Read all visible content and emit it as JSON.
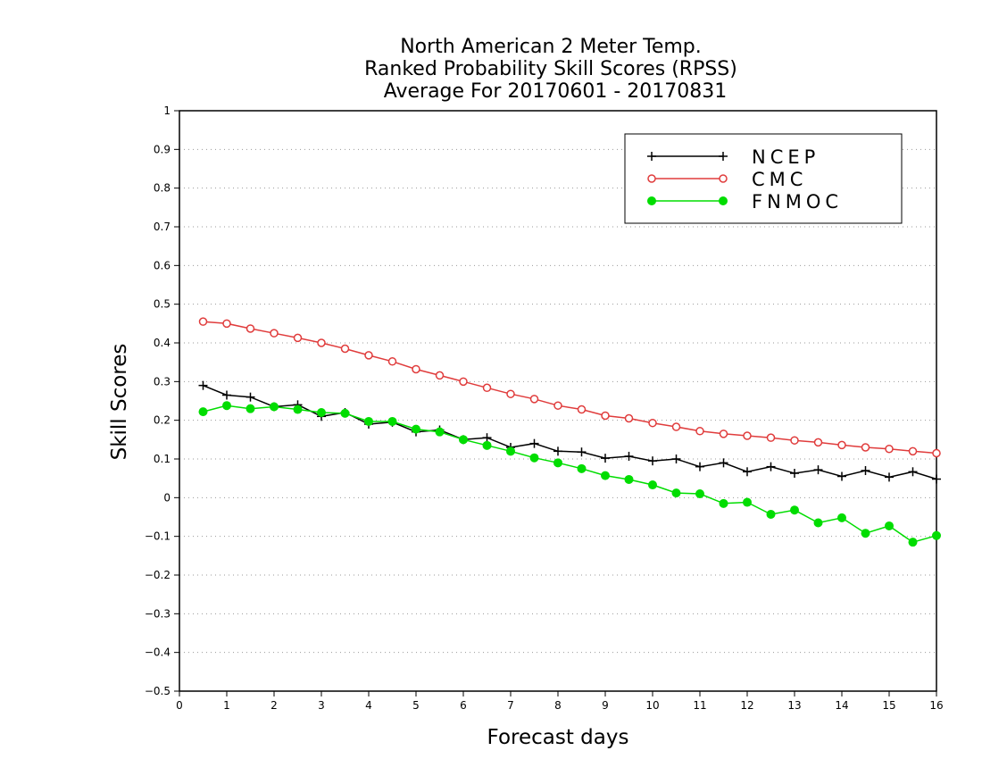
{
  "chart_data": {
    "type": "line",
    "title_lines": [
      "North American 2 Meter Temp.",
      "Ranked Probability Skill Scores (RPSS)",
      "Average For 20170601 - 20170831"
    ],
    "xlabel": "Forecast days",
    "ylabel": "Skill Scores",
    "xlim": [
      0,
      16
    ],
    "ylim": [
      -0.5,
      1
    ],
    "x_ticks": [
      "0",
      "1",
      "2",
      "3",
      "4",
      "5",
      "6",
      "7",
      "8",
      "9",
      "10",
      "11",
      "12",
      "13",
      "14",
      "15",
      "16"
    ],
    "y_ticks": [
      "−0.5",
      "−0.4",
      "−0.3",
      "−0.2",
      "−0.1",
      "0",
      "0.1",
      "0.2",
      "0.3",
      "0.4",
      "0.5",
      "0.6",
      "0.7",
      "0.8",
      "0.9",
      "1"
    ],
    "grid": "horizontal dotted",
    "legend_position": "top-right",
    "x": [
      0.5,
      1,
      1.5,
      2,
      2.5,
      3,
      3.5,
      4,
      4.5,
      5,
      5.5,
      6,
      6.5,
      7,
      7.5,
      8,
      8.5,
      9,
      9.5,
      10,
      10.5,
      11,
      11.5,
      12,
      12.5,
      13,
      13.5,
      14,
      14.5,
      15,
      15.5,
      16
    ],
    "series": [
      {
        "name": "NCEP",
        "color": "#000000",
        "marker": "plus",
        "values": [
          0.29,
          0.265,
          0.26,
          0.235,
          0.24,
          0.21,
          0.22,
          0.19,
          0.195,
          0.17,
          0.175,
          0.15,
          0.155,
          0.13,
          0.14,
          0.12,
          0.118,
          0.102,
          0.107,
          0.095,
          0.1,
          0.08,
          0.09,
          0.067,
          0.08,
          0.063,
          0.072,
          0.055,
          0.07,
          0.053,
          0.067,
          0.048
        ]
      },
      {
        "name": "CMC",
        "color": "#e03c3c",
        "marker": "open-circle",
        "values": [
          0.455,
          0.45,
          0.437,
          0.425,
          0.413,
          0.4,
          0.385,
          0.368,
          0.352,
          0.332,
          0.316,
          0.3,
          0.284,
          0.268,
          0.255,
          0.238,
          0.228,
          0.212,
          0.205,
          0.193,
          0.183,
          0.172,
          0.165,
          0.16,
          0.155,
          0.148,
          0.143,
          0.136,
          0.13,
          0.126,
          0.12,
          0.115
        ]
      },
      {
        "name": "FNMOC",
        "color": "#00dd00",
        "marker": "filled-circle",
        "values": [
          0.222,
          0.238,
          0.23,
          0.235,
          0.228,
          0.22,
          0.218,
          0.197,
          0.197,
          0.177,
          0.17,
          0.15,
          0.135,
          0.12,
          0.103,
          0.09,
          0.075,
          0.057,
          0.047,
          0.033,
          0.012,
          0.01,
          -0.015,
          -0.012,
          -0.043,
          -0.032,
          -0.065,
          -0.052,
          -0.092,
          -0.073,
          -0.115,
          -0.098
        ]
      }
    ]
  }
}
